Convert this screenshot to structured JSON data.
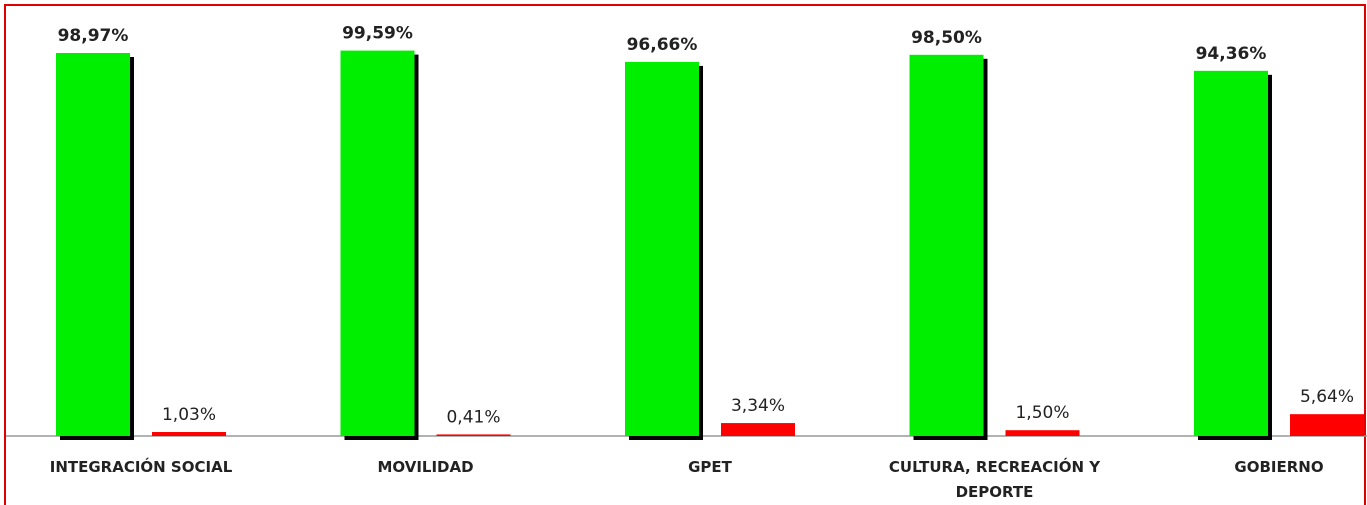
{
  "chart_data": {
    "type": "bar",
    "categories": [
      "INTEGRACIÓN SOCIAL",
      "MOVILIDAD",
      "GPET",
      "CULTURA, RECREACIÓN Y DEPORTE",
      "GOBIERNO"
    ],
    "series": [
      {
        "color": "#00ee00",
        "values": [
          98.97,
          99.59,
          96.66,
          98.5,
          94.36
        ],
        "value_labels": [
          "98,97%",
          "99,59%",
          "96,66%",
          "98,50%",
          "94,36%"
        ]
      },
      {
        "color": "#ff0000",
        "values": [
          1.03,
          0.41,
          3.34,
          1.5,
          5.64
        ],
        "value_labels": [
          "1,03%",
          "0,41%",
          "3,34%",
          "1,50%",
          "5,64%"
        ]
      }
    ],
    "ylim": [
      0,
      100
    ]
  }
}
